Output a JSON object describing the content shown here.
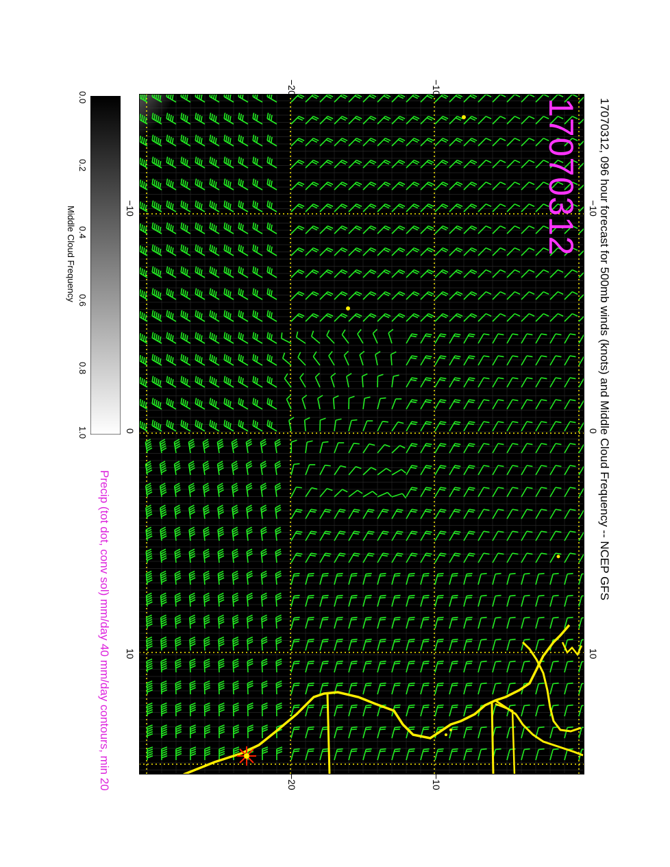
{
  "title": "17070312, 096 hour forecast for 500mb winds (knots) and Middle Cloud Frequency -- NCEP GFS",
  "date_stamp": "17070312",
  "precip_caption": "Precip (tot dot, conv sol) mm/day 40 mm/day contours, min 20",
  "colorbar": {
    "label": "Middle Cloud Frequency",
    "ticks": [
      "0.0",
      "0.2",
      "0.4",
      "0.6",
      "0.8",
      "1.0"
    ]
  },
  "axes": {
    "top_labels": [
      "−20",
      "−10"
    ],
    "bottom_labels": [
      "−20",
      "−10"
    ],
    "left_labels": [
      "−10",
      "0",
      "10"
    ],
    "right_labels": [
      "−10",
      "0",
      "10"
    ]
  },
  "colors": {
    "background": "#000000",
    "barbs": "#22ee22",
    "coast": "#ffee00",
    "grid": "#ffee00",
    "stamp": "#ff33ff",
    "precip": "#dd22dd",
    "storm": "#ff2200"
  },
  "legend_icons": [
    "wind-barb-icon",
    "storm-marker-icon"
  ]
}
